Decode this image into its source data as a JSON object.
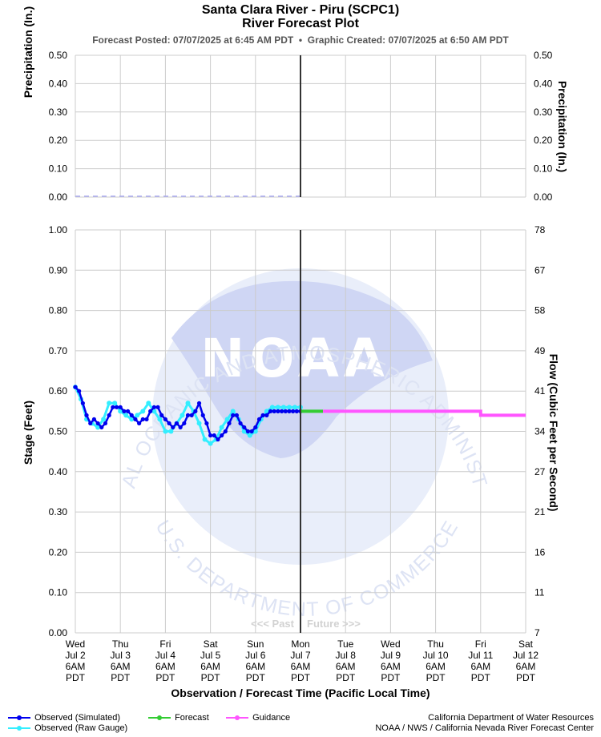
{
  "header": {
    "title": "Santa Clara River - Piru (SCPC1)",
    "subtitle": "River Forecast Plot",
    "posted": "Forecast Posted: 07/07/2025 at 6:45 AM PDT",
    "separator": "•",
    "created": "Graphic Created: 07/07/2025 at 6:50 AM PDT"
  },
  "watermark": {
    "agency": "NATIONAL OCEANIC AND ATMOSPHERIC ADMINISTRATION",
    "department": "U.S. DEPARTMENT OF COMMERCE",
    "logo_text": "NOAA"
  },
  "annotations": {
    "past": "<<< Past",
    "future": "Future >>>"
  },
  "legend": {
    "observed_sim": "Observed (Simulated)",
    "observed_raw": "Observed (Raw Gauge)",
    "forecast": "Forecast",
    "guidance": "Guidance"
  },
  "credits": {
    "line1": "California Department of Water Resources",
    "line2": "NOAA / NWS / California Nevada River Forecast Center"
  },
  "colors": {
    "observed_sim": "#0000ee",
    "observed_raw": "#33eeff",
    "forecast": "#33cc33",
    "guidance": "#ff55ff",
    "now_line": "#333333",
    "grid": "#cccccc",
    "precip": "#aaaaee"
  },
  "chart_data": [
    {
      "type": "line",
      "ylabel": "Precipitation (In.)",
      "y2label": "Precipitation (In.)",
      "ylim": [
        0,
        0.5
      ],
      "yticks": [
        "0.00",
        "0.10",
        "0.20",
        "0.30",
        "0.40",
        "0.50"
      ],
      "grid": true,
      "series": [
        {
          "values": [
            0,
            0,
            0,
            0,
            0,
            0,
            0,
            0,
            0,
            0,
            0
          ]
        }
      ]
    },
    {
      "type": "line",
      "xlabel": "Observation / Forecast Time (Pacific Local Time)",
      "ylabel": "Stage (Feet)",
      "y2label": "Flow (Cubic Feet per Second)",
      "ylim": [
        0,
        1.0
      ],
      "yticks": [
        "0.00",
        "0.10",
        "0.20",
        "0.30",
        "0.40",
        "0.50",
        "0.60",
        "0.70",
        "0.80",
        "0.90",
        "1.00"
      ],
      "y2ticks": [
        "7",
        "11",
        "16",
        "21",
        "27",
        "34",
        "41",
        "49",
        "58",
        "67",
        "78"
      ],
      "grid": true,
      "x_ticks": [
        [
          "Wed",
          "Jul 2",
          "6AM",
          "PDT"
        ],
        [
          "Thu",
          "Jul 3",
          "6AM",
          "PDT"
        ],
        [
          "Fri",
          "Jul 4",
          "6AM",
          "PDT"
        ],
        [
          "Sat",
          "Jul 5",
          "6AM",
          "PDT"
        ],
        [
          "Sun",
          "Jul 6",
          "6AM",
          "PDT"
        ],
        [
          "Mon",
          "Jul 7",
          "6AM",
          "PDT"
        ],
        [
          "Tue",
          "Jul 8",
          "6AM",
          "PDT"
        ],
        [
          "Wed",
          "Jul 9",
          "6AM",
          "PDT"
        ],
        [
          "Thu",
          "Jul 10",
          "6AM",
          "PDT"
        ],
        [
          "Fri",
          "Jul 11",
          "6AM",
          "PDT"
        ],
        [
          "Sat",
          "Jul 12",
          "6AM",
          "PDT"
        ]
      ],
      "x_unit": "hours after Wed Jul 2 6AM PDT",
      "now_x": 120,
      "series": [
        {
          "name": "Observed (Raw Gauge)",
          "x": [
            0,
            3,
            6,
            9,
            12,
            15,
            18,
            21,
            24,
            27,
            30,
            33,
            36,
            39,
            42,
            45,
            48,
            51,
            54,
            57,
            60,
            63,
            66,
            69,
            72,
            75,
            78,
            81,
            84,
            87,
            90,
            93,
            96,
            99,
            102,
            105,
            108,
            111,
            114,
            117,
            120
          ],
          "values": [
            0.61,
            0.58,
            0.53,
            0.52,
            0.51,
            0.53,
            0.57,
            0.57,
            0.55,
            0.54,
            0.53,
            0.54,
            0.55,
            0.57,
            0.55,
            0.53,
            0.5,
            0.5,
            0.52,
            0.54,
            0.57,
            0.55,
            0.52,
            0.48,
            0.47,
            0.48,
            0.51,
            0.53,
            0.55,
            0.53,
            0.5,
            0.49,
            0.5,
            0.53,
            0.55,
            0.56,
            0.56,
            0.56,
            0.56,
            0.56,
            0.56
          ]
        },
        {
          "name": "Observed (Simulated)",
          "x": [
            0,
            2,
            4,
            6,
            8,
            10,
            12,
            14,
            16,
            18,
            20,
            22,
            24,
            26,
            28,
            30,
            32,
            34,
            36,
            38,
            40,
            42,
            44,
            46,
            48,
            50,
            52,
            54,
            56,
            58,
            60,
            62,
            64,
            66,
            68,
            70,
            72,
            74,
            76,
            78,
            80,
            82,
            84,
            86,
            88,
            90,
            92,
            94,
            96,
            98,
            100,
            102,
            104,
            106,
            108,
            110,
            112,
            114,
            116,
            118,
            120
          ],
          "values": [
            0.61,
            0.6,
            0.57,
            0.54,
            0.52,
            0.53,
            0.52,
            0.51,
            0.52,
            0.54,
            0.56,
            0.56,
            0.56,
            0.55,
            0.55,
            0.54,
            0.53,
            0.52,
            0.53,
            0.53,
            0.55,
            0.56,
            0.56,
            0.54,
            0.53,
            0.52,
            0.51,
            0.52,
            0.51,
            0.52,
            0.54,
            0.54,
            0.55,
            0.57,
            0.54,
            0.52,
            0.49,
            0.49,
            0.48,
            0.49,
            0.5,
            0.52,
            0.54,
            0.54,
            0.52,
            0.51,
            0.5,
            0.5,
            0.51,
            0.53,
            0.54,
            0.54,
            0.55,
            0.55,
            0.55,
            0.55,
            0.55,
            0.55,
            0.55,
            0.55,
            0.55
          ]
        },
        {
          "name": "Forecast",
          "x": [
            120,
            132
          ],
          "values": [
            0.55,
            0.55
          ]
        },
        {
          "name": "Guidance",
          "x": [
            132,
            216,
            216,
            240
          ],
          "values": [
            0.55,
            0.55,
            0.54,
            0.54
          ]
        }
      ]
    }
  ]
}
